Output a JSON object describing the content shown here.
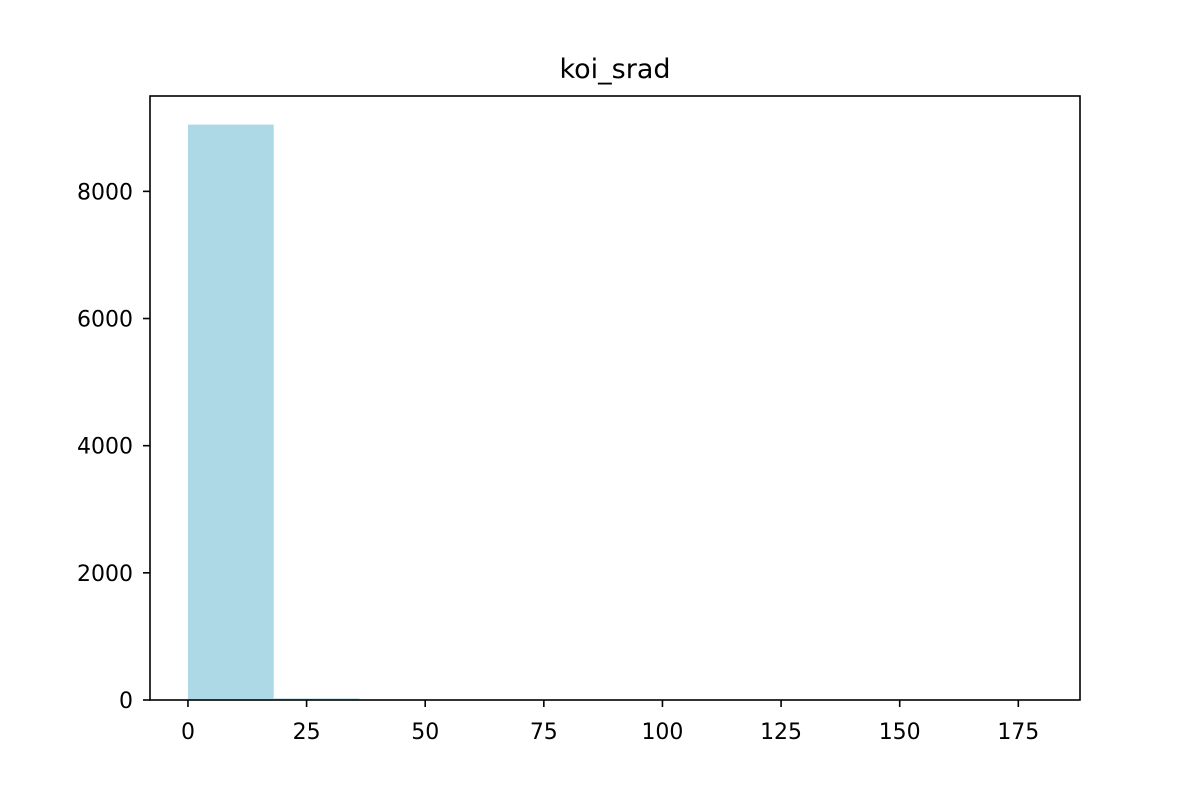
{
  "chart_data": {
    "type": "bar",
    "title": "koi_srad",
    "xlabel": "",
    "ylabel": "",
    "bin_edges": [
      0,
      18.07,
      36.14,
      54.21,
      72.28,
      90.35,
      108.42,
      126.49,
      144.56,
      162.63,
      180.7
    ],
    "values": [
      9050,
      25,
      5,
      2,
      1,
      1,
      1,
      1,
      1,
      1
    ],
    "xlim": [
      -8,
      188
    ],
    "ylim": [
      0,
      9500
    ],
    "xticks": [
      0,
      25,
      50,
      75,
      100,
      125,
      150,
      175
    ],
    "yticks": [
      0,
      2000,
      4000,
      6000,
      8000
    ],
    "bar_color": "#add8e6",
    "grid": false
  }
}
